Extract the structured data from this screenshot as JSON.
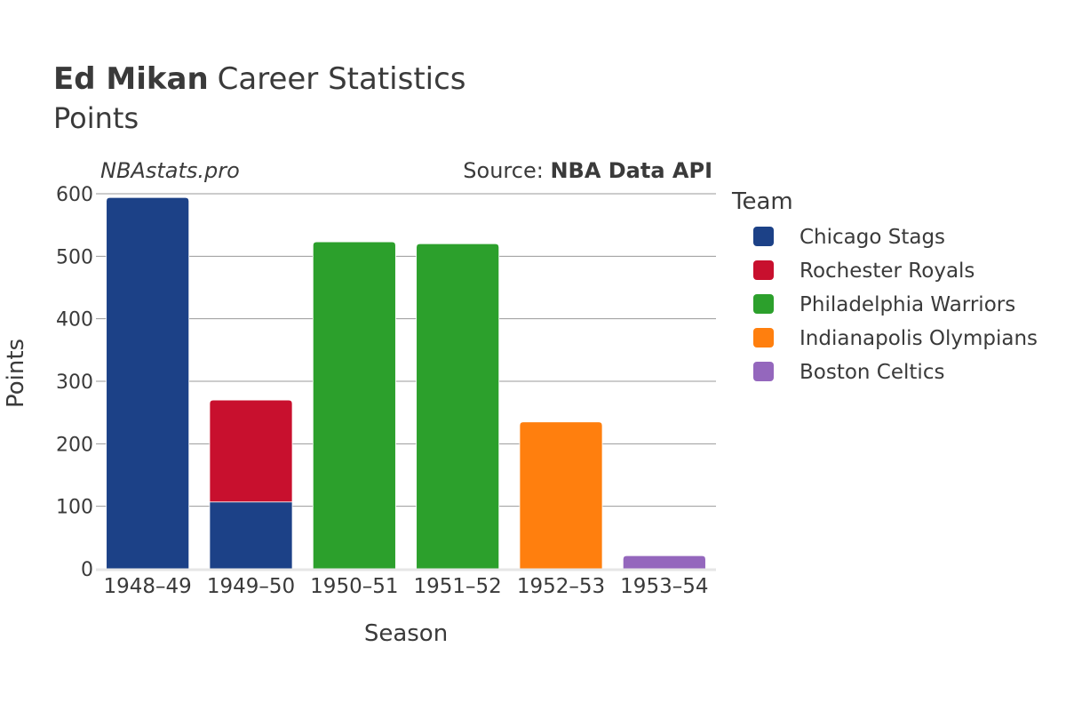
{
  "header": {
    "title_bold": "Ed Mikan",
    "title_rest": "Career Statistics",
    "subtitle": "Points"
  },
  "watermark": "NBAstats.pro",
  "source": {
    "prefix": "Source: ",
    "name": "NBA Data API"
  },
  "legend_title": "Team",
  "chart_data": {
    "type": "bar",
    "stacked": true,
    "title": "Ed Mikan Career Statistics",
    "subtitle": "Points",
    "xlabel": "Season",
    "ylabel": "Points",
    "ylim": [
      0,
      600
    ],
    "yticks": [
      0,
      100,
      200,
      300,
      400,
      500,
      600
    ],
    "categories": [
      "1948–49",
      "1949–50",
      "1950–51",
      "1951–52",
      "1952–53",
      "1953–54"
    ],
    "series": [
      {
        "name": "Chicago Stags",
        "color": "#1c4187",
        "values": [
          594,
          107,
          0,
          0,
          0,
          0
        ]
      },
      {
        "name": "Rochester Royals",
        "color": "#c8102e",
        "values": [
          0,
          163,
          0,
          0,
          0,
          0
        ]
      },
      {
        "name": "Philadelphia Warriors",
        "color": "#2ca02c",
        "values": [
          0,
          0,
          523,
          520,
          0,
          0
        ]
      },
      {
        "name": "Indianapolis Olympians",
        "color": "#ff7f0e",
        "values": [
          0,
          0,
          0,
          0,
          235,
          0
        ]
      },
      {
        "name": "Boston Celtics",
        "color": "#9467bd",
        "values": [
          0,
          0,
          0,
          0,
          0,
          21
        ]
      }
    ]
  }
}
